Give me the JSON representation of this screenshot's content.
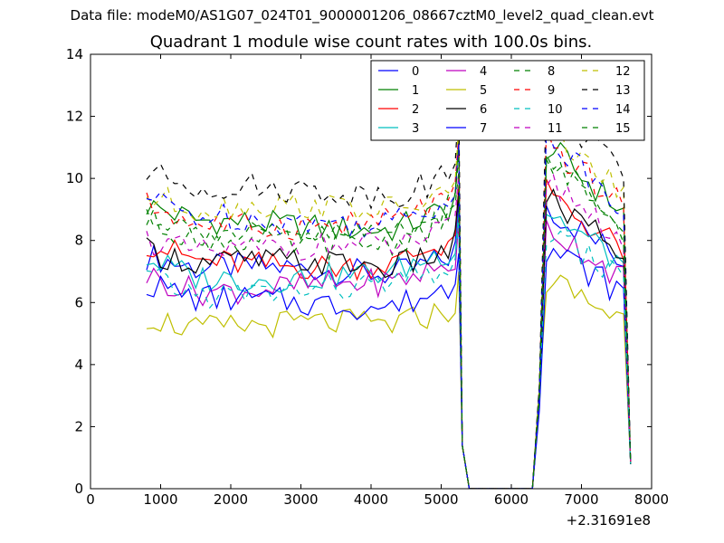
{
  "figure": {
    "suptitle": "Data file: modeM0/AS1G07_024T01_9000001206_08667cztM0_level2_quad_clean.evt"
  },
  "chart_data": {
    "type": "line",
    "title": "Quadrant 1 module wise count rates with 100.0s bins.",
    "xlabel": "",
    "ylabel": "",
    "x_offset_label": "+2.31691e8",
    "xlim": [
      0,
      8000
    ],
    "ylim": [
      0,
      14
    ],
    "xticks": [
      0,
      1000,
      2000,
      3000,
      4000,
      5000,
      6000,
      7000,
      8000
    ],
    "yticks": [
      0,
      2,
      4,
      6,
      8,
      10,
      12,
      14
    ],
    "legend_position": "top-right",
    "legend_columns": 4,
    "series": [
      {
        "name": "0",
        "color": "#0000ff",
        "style": "solid",
        "base": 7.0
      },
      {
        "name": "1",
        "color": "#008000",
        "style": "solid",
        "base": 8.5
      },
      {
        "name": "2",
        "color": "#ff0000",
        "style": "solid",
        "base": 7.3
      },
      {
        "name": "3",
        "color": "#00bfbf",
        "style": "solid",
        "base": 6.9
      },
      {
        "name": "4",
        "color": "#bf00bf",
        "style": "solid",
        "base": 6.5
      },
      {
        "name": "5",
        "color": "#bfbf00",
        "style": "solid",
        "base": 5.2
      },
      {
        "name": "6",
        "color": "#000000",
        "style": "solid",
        "base": 7.2
      },
      {
        "name": "7",
        "color": "#0000ff",
        "style": "solid",
        "base": 6.0
      },
      {
        "name": "8",
        "color": "#008000",
        "style": "dashed",
        "base": 8.0
      },
      {
        "name": "9",
        "color": "#ff0000",
        "style": "dashed",
        "base": 8.6
      },
      {
        "name": "10",
        "color": "#00bfbf",
        "style": "dashed",
        "base": 6.4
      },
      {
        "name": "11",
        "color": "#bf00bf",
        "style": "dashed",
        "base": 7.7
      },
      {
        "name": "12",
        "color": "#bfbf00",
        "style": "dashed",
        "base": 9.0
      },
      {
        "name": "13",
        "color": "#000000",
        "style": "dashed",
        "base": 9.6
      },
      {
        "name": "14",
        "color": "#0000ff",
        "style": "dashed",
        "base": 8.7
      },
      {
        "name": "15",
        "color": "#008000",
        "style": "dashed",
        "base": 8.3
      }
    ],
    "time_profile": {
      "segment1": {
        "x_start": 800,
        "x_end": 5100,
        "step": 100
      },
      "rise": [
        {
          "x": 5200,
          "factor": 1.12
        },
        {
          "x": 5250,
          "factor": 1.3
        }
      ],
      "drop": [
        {
          "x": 5300,
          "value": 1.4
        },
        {
          "x": 5400,
          "value": 0.0
        }
      ],
      "gap": {
        "x_start": 5400,
        "x_end": 6300,
        "value": 0.0
      },
      "recovery": [
        {
          "x": 6300,
          "value": 0.0
        },
        {
          "x": 6400,
          "value": 3.0
        }
      ],
      "segment2": {
        "x_start": 6500,
        "x_end": 7600,
        "step": 100,
        "peak_factor": 1.3,
        "end_factor": 1.05
      },
      "end_drop": [
        {
          "x": 7700,
          "value": 0.8
        }
      ]
    }
  }
}
